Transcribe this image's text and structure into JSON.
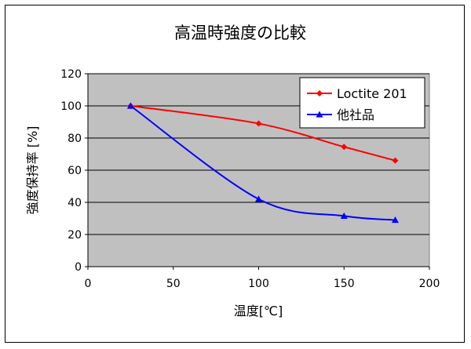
{
  "chart_data": {
    "type": "line",
    "title": "高温時強度の比較",
    "xlabel": "温度[℃]",
    "ylabel": "強度保持率 [%]",
    "xlim": [
      0,
      200
    ],
    "ylim": [
      0,
      120
    ],
    "xticks": [
      0,
      50,
      100,
      150,
      200
    ],
    "yticks": [
      0,
      20,
      40,
      60,
      80,
      100,
      120
    ],
    "grid": "horizontal",
    "plot_background": "#c0c0c0",
    "legend_position": "top-right",
    "series": [
      {
        "name": "Loctite 201",
        "color": "#ff0000",
        "marker": "diamond",
        "x": [
          25,
          100,
          150,
          180
        ],
        "y": [
          100,
          89,
          74.5,
          66
        ]
      },
      {
        "name": "他社品",
        "color": "#0000ff",
        "marker": "triangle",
        "x": [
          25,
          100,
          150,
          180
        ],
        "y": [
          100,
          42,
          31.5,
          29
        ]
      }
    ]
  }
}
